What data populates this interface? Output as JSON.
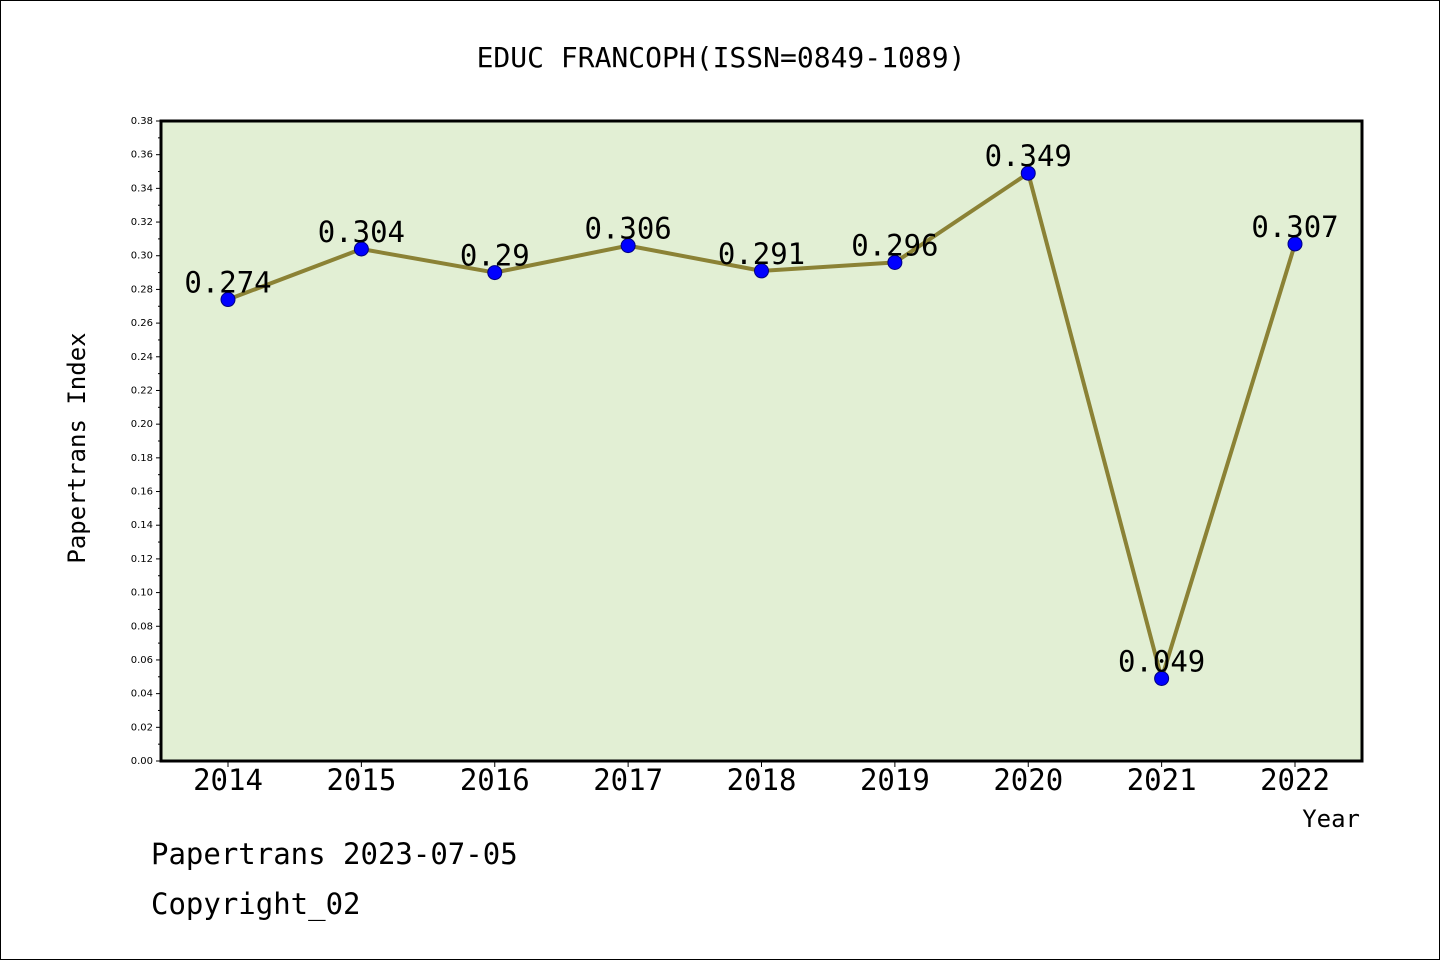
{
  "chart_data": {
    "type": "line",
    "title": "EDUC FRANCOPH(ISSN=0849-1089)",
    "xlabel": "Year",
    "ylabel": "Papertrans Index",
    "categories": [
      "2014",
      "2015",
      "2016",
      "2017",
      "2018",
      "2019",
      "2020",
      "2021",
      "2022"
    ],
    "values": [
      0.274,
      0.304,
      0.29,
      0.306,
      0.291,
      0.296,
      0.349,
      0.049,
      0.307
    ],
    "data_labels": [
      "0.274",
      "0.304",
      "0.29",
      "0.306",
      "0.291",
      "0.296",
      "0.349",
      "0.049",
      "0.307"
    ],
    "ylim": [
      0,
      0.38
    ],
    "yticks": [
      "0.00",
      "0.02",
      "0.04",
      "0.06",
      "0.08",
      "0.10",
      "0.12",
      "0.14",
      "0.16",
      "0.18",
      "0.20",
      "0.22",
      "0.24",
      "0.26",
      "0.28",
      "0.30",
      "0.32",
      "0.34",
      "0.36",
      "0.38"
    ],
    "grid": false,
    "legend": "none",
    "colors": {
      "plot_background": "#e2efd4",
      "line": "#8b8235",
      "marker": "#0000ff",
      "axis": "#000000"
    }
  },
  "footer": {
    "date_text": "Papertrans 2023-07-05",
    "copyright_text": "Copyright_02"
  }
}
